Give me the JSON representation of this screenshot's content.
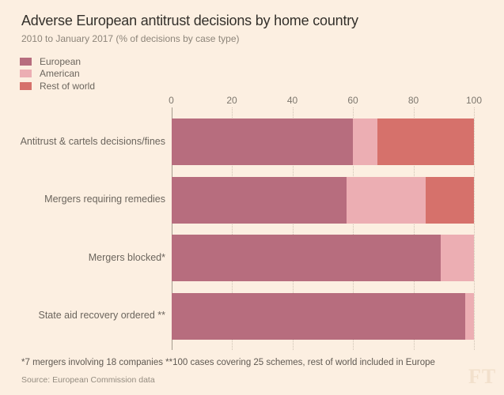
{
  "header": {
    "title": "Adverse European antitrust decisions by home country",
    "subtitle": "2010 to January 2017 (% of decisions by case type)"
  },
  "chart_data": {
    "type": "bar",
    "orientation": "horizontal",
    "stacked": true,
    "title": "Adverse European antitrust decisions by home country",
    "subtitle": "2010 to January 2017 (% of decisions by case type)",
    "categories": [
      "Antitrust & cartels decisions/fines",
      "Mergers requiring remedies",
      "Mergers blocked*",
      "State aid recovery ordered **"
    ],
    "series": [
      {
        "name": "European",
        "color": "#b76d7e",
        "values": [
          60,
          58,
          89,
          97
        ]
      },
      {
        "name": "American",
        "color": "#ecaeb3",
        "values": [
          8,
          26,
          11,
          3
        ]
      },
      {
        "name": "Rest of world",
        "color": "#d6716b",
        "values": [
          32,
          16,
          0,
          0
        ]
      }
    ],
    "x_axis": {
      "ticks": [
        0,
        20,
        40,
        60,
        80,
        100
      ],
      "range": [
        0,
        100
      ],
      "position": "top",
      "grid": "dotted",
      "unit": "%"
    },
    "legend_position": "top-left",
    "footnote": "*7 mergers involving 18 companies **100 cases covering 25 schemes, rest of world included in Europe",
    "source": "Source: European Commission data"
  },
  "branding": {
    "logo_text": "FT"
  },
  "colors": {
    "background": "#fcefe1",
    "european": "#b76d7e",
    "american": "#ecaeb3",
    "rest_of_world": "#d6716b",
    "zero_axis_line": "#a59c8f",
    "gridline": "#cfc3b4",
    "title_text": "#33302b",
    "muted_text": "#8d857a"
  }
}
